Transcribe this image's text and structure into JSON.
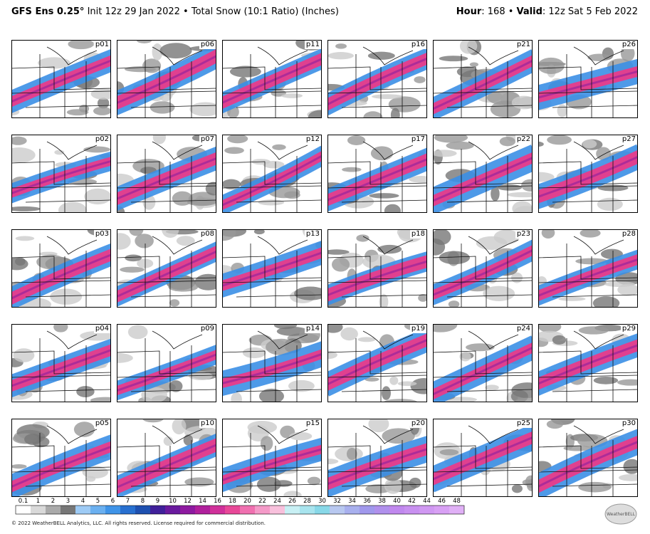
{
  "header": {
    "model": "GFS Ens 0.25°",
    "description": "Init 12z 29 Jan 2022 • Total Snow (10:1 Ratio) (Inches)",
    "hour_label": "Hour",
    "hour_value": ": 168",
    "separator": "•",
    "valid_label": "Valid",
    "valid_value": ": 12z Sat 5 Feb 2022"
  },
  "panels": [
    {
      "label": "p01"
    },
    {
      "label": "p06"
    },
    {
      "label": "p11"
    },
    {
      "label": "p16"
    },
    {
      "label": "p21"
    },
    {
      "label": "p26"
    },
    {
      "label": "p02"
    },
    {
      "label": "p07"
    },
    {
      "label": "p12"
    },
    {
      "label": "p17"
    },
    {
      "label": "p22"
    },
    {
      "label": "p27"
    },
    {
      "label": "p03"
    },
    {
      "label": "p08"
    },
    {
      "label": "p13"
    },
    {
      "label": "p18"
    },
    {
      "label": "p23"
    },
    {
      "label": "p28"
    },
    {
      "label": "p04"
    },
    {
      "label": "p09"
    },
    {
      "label": "p14"
    },
    {
      "label": "p19"
    },
    {
      "label": "p24"
    },
    {
      "label": "p29"
    },
    {
      "label": "p05"
    },
    {
      "label": "p10"
    },
    {
      "label": "p15"
    },
    {
      "label": "p20"
    },
    {
      "label": "p25"
    },
    {
      "label": "p30"
    }
  ],
  "legend": {
    "labels": [
      0.1,
      1,
      2,
      3,
      4,
      5,
      6,
      7,
      8,
      9,
      10,
      12,
      14,
      16,
      18,
      20,
      22,
      24,
      26,
      28,
      30,
      32,
      34,
      36,
      38,
      40,
      42,
      44,
      46,
      48
    ]
  },
  "footer": {
    "copyright": "© 2022 WeatherBELL Analytics, LLC. All rights reserved. License required for commercial distribution.",
    "logo": "WeatherBELL"
  }
}
